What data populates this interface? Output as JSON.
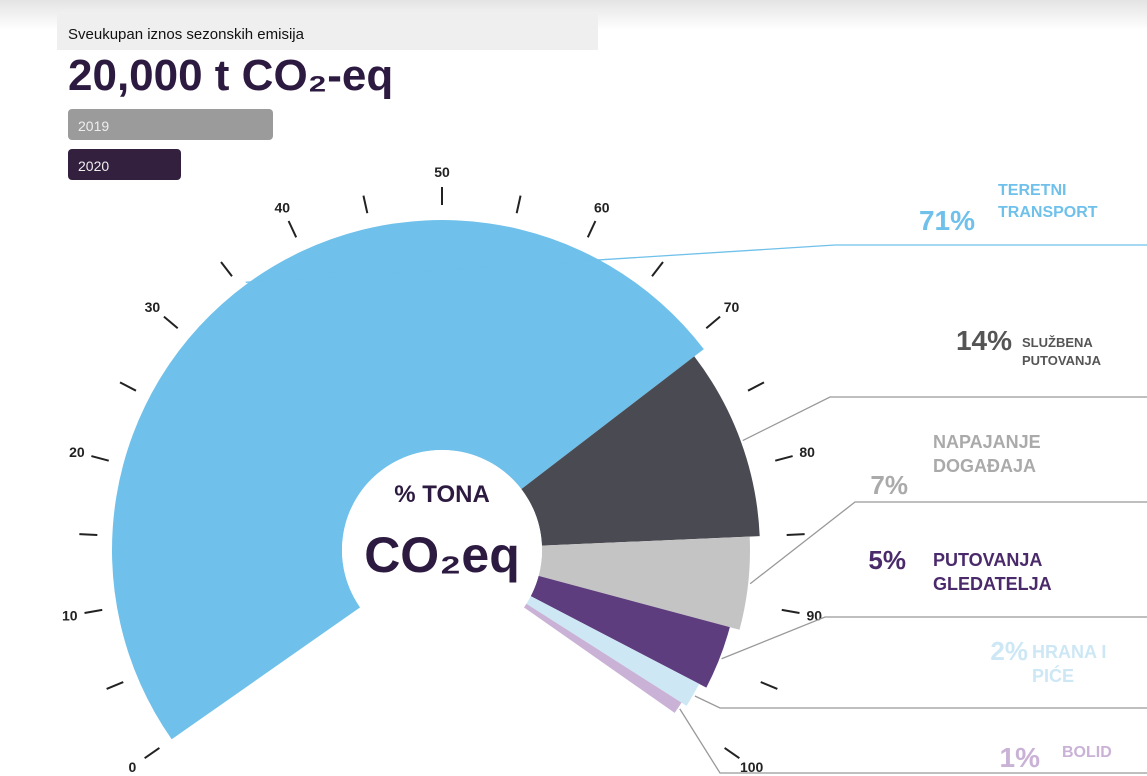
{
  "chart_data": {
    "type": "gauge",
    "title": "Sveukupan iznos sezonskih emisija",
    "headline": "20,000 t CO₂-eq",
    "legend": [
      {
        "name": "2019",
        "color": "#9b9b9b"
      },
      {
        "name": "2020",
        "color": "#33203f"
      }
    ],
    "center_label_top": "% TONA",
    "center_label_main": "CO₂eq",
    "xlim": [
      0,
      100
    ],
    "xticks": [
      0,
      10,
      20,
      30,
      40,
      50,
      60,
      70,
      80,
      90,
      100
    ],
    "minor_ticks": [
      5,
      15,
      25,
      35,
      45,
      55,
      65,
      75,
      85,
      95
    ],
    "series": [
      {
        "name": "TERETNI TRANSPORT",
        "color": "#6fc0ea",
        "values": [
          71
        ],
        "value_labels": [
          "71%"
        ]
      },
      {
        "name": "SLUŽBENA PUTOVANJA",
        "color": "#4a4a52",
        "values": [
          14
        ],
        "value_labels": [
          "14%"
        ]
      },
      {
        "name": "NAPAJANJE DOGAĐAJA",
        "color": "#c4c4c4",
        "values": [
          7
        ],
        "value_labels": [
          "7%"
        ]
      },
      {
        "name": "PUTOVANJA GLEDATELJA",
        "color": "#5e3d7e",
        "values": [
          5
        ],
        "value_labels": [
          "5%"
        ]
      },
      {
        "name": "HRANA I PIĆE",
        "color": "#cde7f5",
        "values": [
          2
        ],
        "value_labels": [
          "2%"
        ]
      },
      {
        "name": "BOLID",
        "color": "#c9b2d6",
        "values": [
          1
        ],
        "value_labels": [
          "1%"
        ]
      }
    ]
  }
}
